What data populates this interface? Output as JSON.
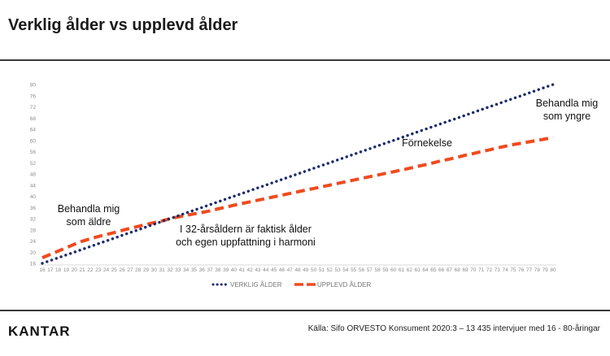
{
  "header": {
    "title": "Verklig ålder vs upplevd ålder"
  },
  "footer": {
    "logo": "KANTAR",
    "source": "Källa: Sifo ORVESTO Konsument 2020:3 – 13 435 intervjuer med 16 - 80-åringar"
  },
  "chart_data": {
    "type": "line",
    "title": "Verklig ålder vs upplevd ålder",
    "xlabel": "",
    "ylabel": "",
    "x": [
      16,
      17,
      18,
      19,
      20,
      21,
      22,
      23,
      24,
      25,
      26,
      27,
      28,
      29,
      30,
      31,
      32,
      33,
      34,
      35,
      36,
      37,
      38,
      39,
      40,
      41,
      42,
      43,
      44,
      45,
      46,
      47,
      48,
      49,
      50,
      51,
      52,
      53,
      54,
      55,
      56,
      57,
      58,
      59,
      60,
      61,
      62,
      63,
      64,
      65,
      66,
      67,
      68,
      69,
      70,
      71,
      72,
      73,
      74,
      75,
      76,
      77,
      78,
      79,
      80
    ],
    "ylim": [
      16,
      80
    ],
    "yticks": [
      16,
      20,
      24,
      28,
      32,
      36,
      40,
      44,
      48,
      52,
      56,
      60,
      64,
      68,
      72,
      76,
      80
    ],
    "grid": false,
    "legend_position": "bottom",
    "series": [
      {
        "name": "VERKLIG ÅLDER",
        "style": "dotted",
        "color": "#1b2a6b",
        "values": [
          16,
          17,
          18,
          19,
          20,
          21,
          22,
          23,
          24,
          25,
          26,
          27,
          28,
          29,
          30,
          31,
          32,
          33,
          34,
          35,
          36,
          37,
          38,
          39,
          40,
          41,
          42,
          43,
          44,
          45,
          46,
          47,
          48,
          49,
          50,
          51,
          52,
          53,
          54,
          55,
          56,
          57,
          58,
          59,
          60,
          61,
          62,
          63,
          64,
          65,
          66,
          67,
          68,
          69,
          70,
          71,
          72,
          73,
          74,
          75,
          76,
          77,
          78,
          79,
          80
        ]
      },
      {
        "name": "UPPLEVD ÅLDER",
        "style": "dashed",
        "color": "#ef4b1f",
        "values": [
          18,
          19.2,
          20.4,
          21.6,
          22.8,
          23.9,
          24.8,
          25.6,
          26.3,
          27.0,
          27.8,
          28.5,
          29.2,
          29.9,
          30.6,
          31.2,
          32.0,
          32.6,
          33.2,
          33.7,
          34.2,
          34.8,
          35.5,
          36.1,
          36.8,
          37.4,
          38.0,
          38.6,
          39.2,
          39.8,
          40.4,
          41.0,
          41.6,
          42.2,
          42.8,
          43.4,
          44.0,
          44.6,
          45.2,
          45.8,
          46.4,
          47.0,
          47.6,
          48.2,
          48.8,
          49.4,
          50.0,
          50.7,
          51.3,
          52.0,
          52.7,
          53.3,
          54.0,
          54.7,
          55.3,
          56.0,
          56.6,
          57.3,
          57.9,
          58.5,
          59.0,
          59.5,
          60.0,
          60.5,
          61.0
        ]
      }
    ],
    "annotations": [
      {
        "id": "behandla-yngre",
        "lines": [
          "Behandla mig",
          "som yngre"
        ]
      },
      {
        "id": "fornekelse",
        "lines": [
          "Förnekelse"
        ]
      },
      {
        "id": "behandla-aldre",
        "lines": [
          "Behandla mig",
          "som äldre"
        ]
      },
      {
        "id": "harmoni",
        "lines": [
          "I 32-årsåldern är faktisk ålder",
          "och egen uppfattning i harmoni"
        ]
      }
    ]
  }
}
